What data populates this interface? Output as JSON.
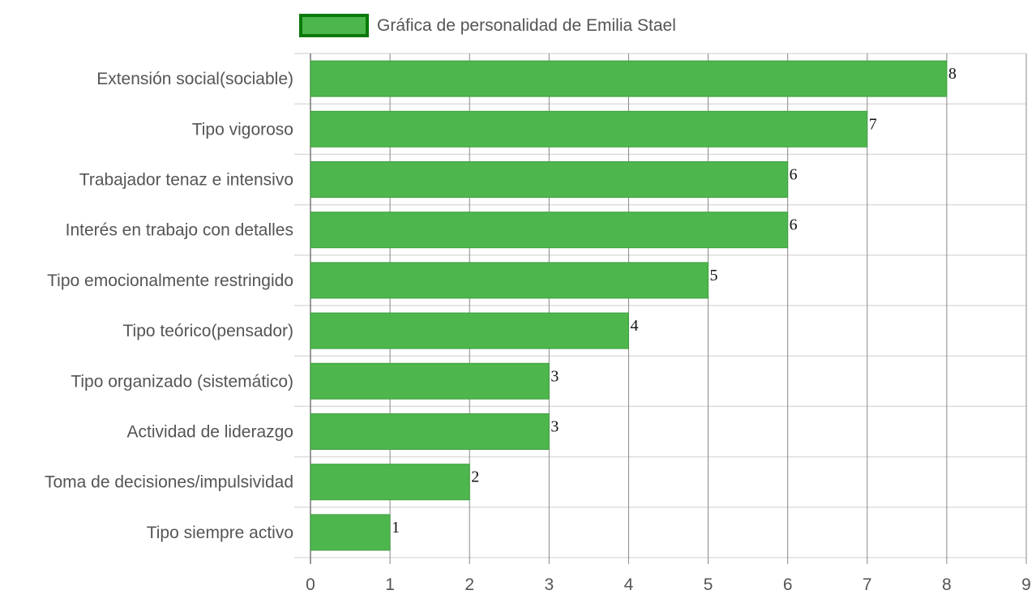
{
  "chart_data": {
    "type": "bar",
    "orientation": "horizontal",
    "categories": [
      "Extensión social(sociable)",
      "Tipo vigoroso",
      "Trabajador tenaz e intensivo",
      "Interés en trabajo con detalles",
      "Tipo emocionalmente restringido",
      "Tipo teórico(pensador)",
      "Tipo organizado (sistemático)",
      "Actividad de liderazgo",
      "Toma de decisiones/impulsividad",
      "Tipo siempre activo"
    ],
    "series": [
      {
        "name": "Gráfica de personalidad de Emilia Stael",
        "values": [
          8,
          7,
          6,
          6,
          5,
          4,
          3,
          3,
          2,
          1
        ]
      }
    ],
    "xlim": [
      0,
      9
    ],
    "x_ticks": [
      "0",
      "1",
      "2",
      "3",
      "4",
      "5",
      "6",
      "7",
      "8",
      "9"
    ],
    "grid": true,
    "legend_position": "top",
    "colors": {
      "bar_fill": "#4db64d",
      "legend_border": "#0a7a0a",
      "gridline_vertical": "#888888",
      "gridline_horizontal": "#dddddd"
    }
  }
}
